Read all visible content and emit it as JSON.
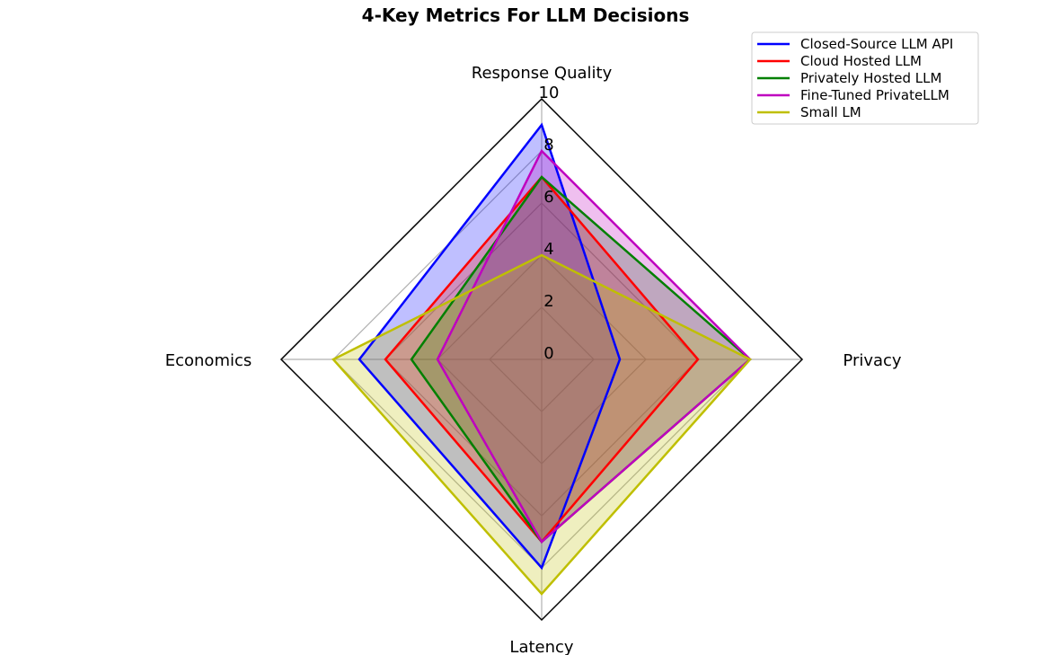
{
  "chart_data": {
    "type": "radar",
    "title": "4-Key Metrics For LLM Decisions",
    "axes": [
      "Response Quality",
      "Privacy",
      "Latency",
      "Economics"
    ],
    "rlim": [
      0,
      10
    ],
    "r_ticks": [
      "0",
      "2",
      "4",
      "6",
      "8",
      "10"
    ],
    "grid": true,
    "legend_position": "top-right",
    "series": [
      {
        "name": "Closed-Source LLM API",
        "color": "#0000ff",
        "values": [
          9,
          3,
          8,
          7
        ]
      },
      {
        "name": "Cloud Hosted LLM",
        "color": "#ff0000",
        "values": [
          7,
          6,
          7,
          6
        ]
      },
      {
        "name": "Privately Hosted LLM",
        "color": "#008000",
        "values": [
          7,
          8,
          7,
          5
        ]
      },
      {
        "name": "Fine-Tuned PrivateLLM",
        "color": "#bf00bf",
        "values": [
          8,
          8,
          7,
          4
        ]
      },
      {
        "name": "Small LM",
        "color": "#bfbf00",
        "values": [
          4,
          8,
          9,
          8
        ]
      }
    ]
  }
}
